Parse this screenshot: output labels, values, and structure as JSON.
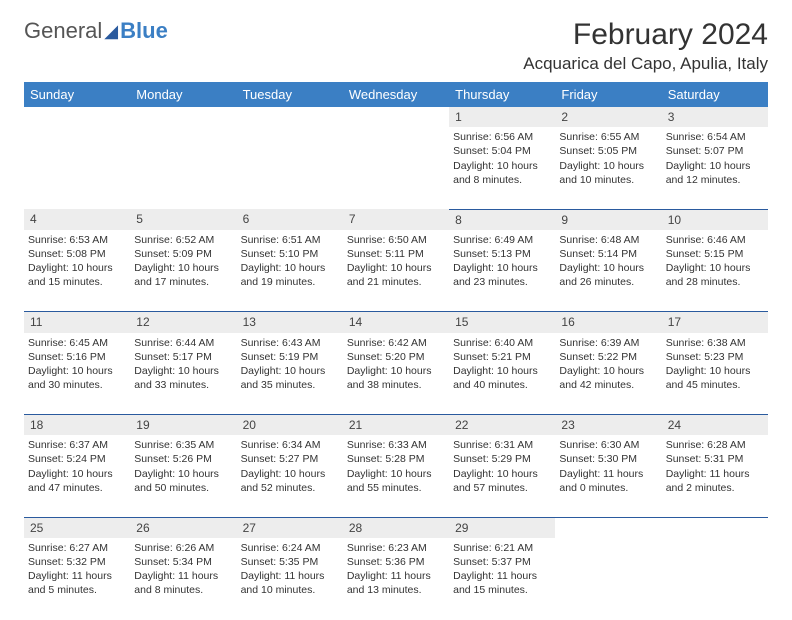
{
  "brand": {
    "part1": "General",
    "part2": "Blue"
  },
  "title": "February 2024",
  "location": "Acquarica del Capo, Apulia, Italy",
  "day_headers": [
    "Sunday",
    "Monday",
    "Tuesday",
    "Wednesday",
    "Thursday",
    "Friday",
    "Saturday"
  ],
  "colors": {
    "header_bg": "#3b7fc4",
    "header_text": "#ffffff",
    "daynum_bg": "#ededed",
    "cell_border": "#2a5a9e",
    "text": "#333333"
  },
  "weeks": [
    {
      "nums": [
        "",
        "",
        "",
        "",
        "1",
        "2",
        "3"
      ],
      "cells": [
        null,
        null,
        null,
        null,
        {
          "sunrise": "Sunrise: 6:56 AM",
          "sunset": "Sunset: 5:04 PM",
          "day1": "Daylight: 10 hours",
          "day2": "and 8 minutes."
        },
        {
          "sunrise": "Sunrise: 6:55 AM",
          "sunset": "Sunset: 5:05 PM",
          "day1": "Daylight: 10 hours",
          "day2": "and 10 minutes."
        },
        {
          "sunrise": "Sunrise: 6:54 AM",
          "sunset": "Sunset: 5:07 PM",
          "day1": "Daylight: 10 hours",
          "day2": "and 12 minutes."
        }
      ]
    },
    {
      "nums": [
        "4",
        "5",
        "6",
        "7",
        "8",
        "9",
        "10"
      ],
      "cells": [
        {
          "sunrise": "Sunrise: 6:53 AM",
          "sunset": "Sunset: 5:08 PM",
          "day1": "Daylight: 10 hours",
          "day2": "and 15 minutes."
        },
        {
          "sunrise": "Sunrise: 6:52 AM",
          "sunset": "Sunset: 5:09 PM",
          "day1": "Daylight: 10 hours",
          "day2": "and 17 minutes."
        },
        {
          "sunrise": "Sunrise: 6:51 AM",
          "sunset": "Sunset: 5:10 PM",
          "day1": "Daylight: 10 hours",
          "day2": "and 19 minutes."
        },
        {
          "sunrise": "Sunrise: 6:50 AM",
          "sunset": "Sunset: 5:11 PM",
          "day1": "Daylight: 10 hours",
          "day2": "and 21 minutes."
        },
        {
          "sunrise": "Sunrise: 6:49 AM",
          "sunset": "Sunset: 5:13 PM",
          "day1": "Daylight: 10 hours",
          "day2": "and 23 minutes."
        },
        {
          "sunrise": "Sunrise: 6:48 AM",
          "sunset": "Sunset: 5:14 PM",
          "day1": "Daylight: 10 hours",
          "day2": "and 26 minutes."
        },
        {
          "sunrise": "Sunrise: 6:46 AM",
          "sunset": "Sunset: 5:15 PM",
          "day1": "Daylight: 10 hours",
          "day2": "and 28 minutes."
        }
      ]
    },
    {
      "nums": [
        "11",
        "12",
        "13",
        "14",
        "15",
        "16",
        "17"
      ],
      "cells": [
        {
          "sunrise": "Sunrise: 6:45 AM",
          "sunset": "Sunset: 5:16 PM",
          "day1": "Daylight: 10 hours",
          "day2": "and 30 minutes."
        },
        {
          "sunrise": "Sunrise: 6:44 AM",
          "sunset": "Sunset: 5:17 PM",
          "day1": "Daylight: 10 hours",
          "day2": "and 33 minutes."
        },
        {
          "sunrise": "Sunrise: 6:43 AM",
          "sunset": "Sunset: 5:19 PM",
          "day1": "Daylight: 10 hours",
          "day2": "and 35 minutes."
        },
        {
          "sunrise": "Sunrise: 6:42 AM",
          "sunset": "Sunset: 5:20 PM",
          "day1": "Daylight: 10 hours",
          "day2": "and 38 minutes."
        },
        {
          "sunrise": "Sunrise: 6:40 AM",
          "sunset": "Sunset: 5:21 PM",
          "day1": "Daylight: 10 hours",
          "day2": "and 40 minutes."
        },
        {
          "sunrise": "Sunrise: 6:39 AM",
          "sunset": "Sunset: 5:22 PM",
          "day1": "Daylight: 10 hours",
          "day2": "and 42 minutes."
        },
        {
          "sunrise": "Sunrise: 6:38 AM",
          "sunset": "Sunset: 5:23 PM",
          "day1": "Daylight: 10 hours",
          "day2": "and 45 minutes."
        }
      ]
    },
    {
      "nums": [
        "18",
        "19",
        "20",
        "21",
        "22",
        "23",
        "24"
      ],
      "cells": [
        {
          "sunrise": "Sunrise: 6:37 AM",
          "sunset": "Sunset: 5:24 PM",
          "day1": "Daylight: 10 hours",
          "day2": "and 47 minutes."
        },
        {
          "sunrise": "Sunrise: 6:35 AM",
          "sunset": "Sunset: 5:26 PM",
          "day1": "Daylight: 10 hours",
          "day2": "and 50 minutes."
        },
        {
          "sunrise": "Sunrise: 6:34 AM",
          "sunset": "Sunset: 5:27 PM",
          "day1": "Daylight: 10 hours",
          "day2": "and 52 minutes."
        },
        {
          "sunrise": "Sunrise: 6:33 AM",
          "sunset": "Sunset: 5:28 PM",
          "day1": "Daylight: 10 hours",
          "day2": "and 55 minutes."
        },
        {
          "sunrise": "Sunrise: 6:31 AM",
          "sunset": "Sunset: 5:29 PM",
          "day1": "Daylight: 10 hours",
          "day2": "and 57 minutes."
        },
        {
          "sunrise": "Sunrise: 6:30 AM",
          "sunset": "Sunset: 5:30 PM",
          "day1": "Daylight: 11 hours",
          "day2": "and 0 minutes."
        },
        {
          "sunrise": "Sunrise: 6:28 AM",
          "sunset": "Sunset: 5:31 PM",
          "day1": "Daylight: 11 hours",
          "day2": "and 2 minutes."
        }
      ]
    },
    {
      "nums": [
        "25",
        "26",
        "27",
        "28",
        "29",
        "",
        ""
      ],
      "cells": [
        {
          "sunrise": "Sunrise: 6:27 AM",
          "sunset": "Sunset: 5:32 PM",
          "day1": "Daylight: 11 hours",
          "day2": "and 5 minutes."
        },
        {
          "sunrise": "Sunrise: 6:26 AM",
          "sunset": "Sunset: 5:34 PM",
          "day1": "Daylight: 11 hours",
          "day2": "and 8 minutes."
        },
        {
          "sunrise": "Sunrise: 6:24 AM",
          "sunset": "Sunset: 5:35 PM",
          "day1": "Daylight: 11 hours",
          "day2": "and 10 minutes."
        },
        {
          "sunrise": "Sunrise: 6:23 AM",
          "sunset": "Sunset: 5:36 PM",
          "day1": "Daylight: 11 hours",
          "day2": "and 13 minutes."
        },
        {
          "sunrise": "Sunrise: 6:21 AM",
          "sunset": "Sunset: 5:37 PM",
          "day1": "Daylight: 11 hours",
          "day2": "and 15 minutes."
        },
        null,
        null
      ]
    }
  ]
}
